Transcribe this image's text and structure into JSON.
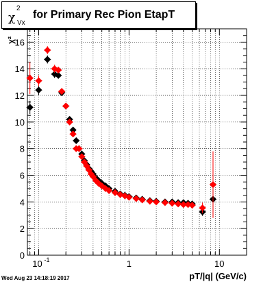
{
  "title": {
    "symbol": "χ",
    "superscript": "2",
    "subscript": "Vx",
    "text": "for Primary Rec Pion EtapT"
  },
  "footer_timestamp": "Wed Aug 23 14:18:19 2017",
  "chart_data": {
    "type": "scatter",
    "title": "χ²_Vx for Primary Rec Pion EtapT",
    "xlabel": "pT/|q| (GeV/c)",
    "ylabel": "χ²",
    "xscale": "log",
    "xlim": [
      0.075,
      20
    ],
    "ylim": [
      0,
      17
    ],
    "x_tick_labels": [
      {
        "value": 0.1,
        "label": "10^{-1}"
      },
      {
        "value": 1,
        "label": "1"
      },
      {
        "value": 10,
        "label": "10"
      }
    ],
    "y_ticks": [
      0,
      2,
      4,
      6,
      8,
      10,
      12,
      14,
      16
    ],
    "grid": true,
    "colors": {
      "series_black": "#000000",
      "series_red": "#ff0000"
    },
    "series": [
      {
        "marker": "diamond",
        "color": "#000000",
        "x": [
          0.08,
          0.1,
          0.125,
          0.15,
          0.165,
          0.18,
          0.2,
          0.22,
          0.24,
          0.26,
          0.28,
          0.3,
          0.32,
          0.34,
          0.36,
          0.38,
          0.4,
          0.43,
          0.46,
          0.5,
          0.55,
          0.6,
          0.7,
          0.8,
          0.9,
          1.0,
          1.2,
          1.4,
          1.7,
          2.0,
          2.5,
          3.0,
          3.5,
          4.0,
          4.5,
          5.0,
          6.5,
          8.5
        ],
        "y": [
          11.1,
          12.4,
          14.7,
          13.6,
          13.5,
          12.2,
          11.2,
          10.2,
          9.4,
          8.6,
          8.0,
          7.6,
          7.1,
          6.8,
          6.5,
          6.3,
          6.1,
          5.8,
          5.6,
          5.4,
          5.2,
          5.0,
          4.8,
          4.6,
          4.5,
          4.4,
          4.3,
          4.2,
          4.1,
          4.05,
          4.0,
          4.0,
          3.95,
          3.95,
          3.9,
          3.85,
          3.25,
          4.2
        ],
        "yerr": [
          0.5,
          0.4,
          0.3,
          0.3,
          0.2,
          0.2,
          0.2,
          0.1,
          0.1,
          0.1,
          0.1,
          0.1,
          0.05,
          0.05,
          0.05,
          0.05,
          0.05,
          0.05,
          0.05,
          0.05,
          0.05,
          0.05,
          0.05,
          0.05,
          0.05,
          0.05,
          0.05,
          0.05,
          0.05,
          0.05,
          0.05,
          0.05,
          0.05,
          0.05,
          0.1,
          0.1,
          0.3,
          1.3
        ]
      },
      {
        "marker": "diamond",
        "color": "#ff0000",
        "x": [
          0.08,
          0.1,
          0.125,
          0.15,
          0.165,
          0.18,
          0.2,
          0.22,
          0.24,
          0.26,
          0.28,
          0.3,
          0.32,
          0.34,
          0.36,
          0.38,
          0.4,
          0.43,
          0.46,
          0.5,
          0.55,
          0.6,
          0.7,
          0.8,
          0.9,
          1.0,
          1.2,
          1.4,
          1.7,
          2.0,
          2.5,
          3.0,
          3.5,
          4.0,
          4.5,
          5.0,
          6.5,
          8.5
        ],
        "y": [
          13.3,
          13.1,
          15.4,
          14.0,
          13.9,
          12.3,
          11.2,
          10.0,
          9.1,
          8.0,
          8.0,
          7.4,
          7.0,
          6.7,
          6.4,
          6.1,
          5.9,
          5.6,
          5.4,
          5.2,
          5.0,
          4.85,
          4.7,
          4.55,
          4.45,
          4.35,
          4.25,
          4.15,
          4.05,
          4.0,
          3.95,
          3.9,
          3.85,
          3.8,
          3.8,
          3.75,
          3.55,
          5.3
        ],
        "yerr": [
          1.2,
          0.4,
          0.3,
          0.3,
          0.2,
          0.2,
          0.2,
          0.1,
          0.1,
          0.1,
          0.1,
          0.1,
          0.05,
          0.05,
          0.05,
          0.05,
          0.05,
          0.05,
          0.05,
          0.05,
          0.05,
          0.05,
          0.05,
          0.05,
          0.05,
          0.05,
          0.05,
          0.05,
          0.05,
          0.05,
          0.05,
          0.05,
          0.05,
          0.05,
          0.1,
          0.1,
          0.4,
          2.5
        ]
      }
    ]
  }
}
